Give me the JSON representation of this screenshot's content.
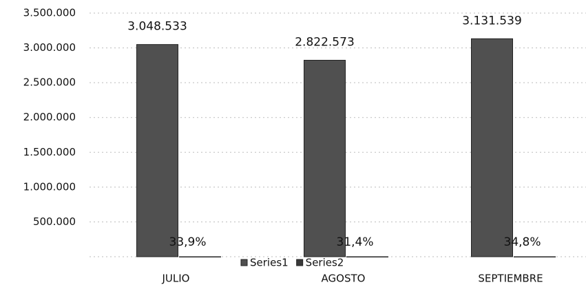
{
  "chart_data": {
    "type": "bar",
    "categories": [
      "JULIO",
      "AGOSTO",
      "SEPTIEMBRE"
    ],
    "series": [
      {
        "name": "Series1",
        "color": "#505050",
        "values": [
          3048533,
          2822573,
          3131539
        ],
        "value_labels": [
          "3.048.533",
          "2.822.573",
          "3.131.539"
        ]
      },
      {
        "name": "Series2",
        "color": "#3a3a3a",
        "values": [
          33.9,
          31.4,
          34.8
        ],
        "value_labels": [
          "33,9%",
          "31,4%",
          "34,8%"
        ]
      }
    ],
    "ylim": [
      0,
      3500000
    ],
    "yticks": [
      {
        "value": 500000,
        "label": "500.000"
      },
      {
        "value": 1000000,
        "label": "1.000.000"
      },
      {
        "value": 1500000,
        "label": "1.500.000"
      },
      {
        "value": 2000000,
        "label": "2.000.000"
      },
      {
        "value": 2500000,
        "label": "2.500.000"
      },
      {
        "value": 3000000,
        "label": "3.000.000"
      },
      {
        "value": 3500000,
        "label": "3.500.000"
      }
    ],
    "grid": true,
    "legend": "bottom"
  }
}
